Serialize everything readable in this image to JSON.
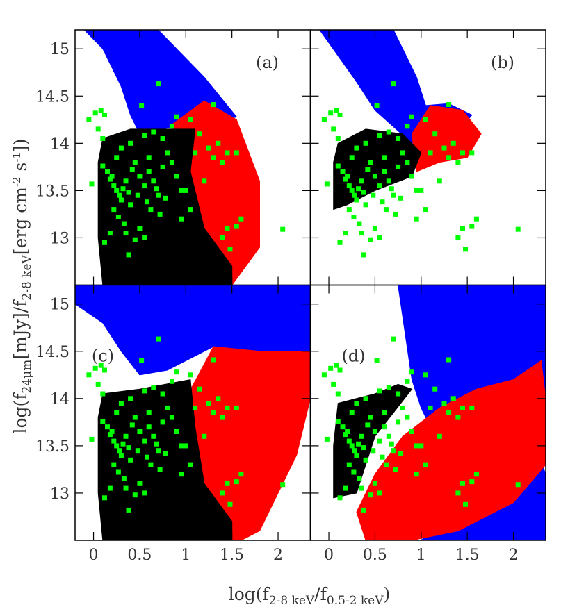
{
  "chart_data": {
    "type": "scatter",
    "layout": "2x2 panels",
    "xlabel_parts": {
      "main": "log(f",
      "sub1": "2-8 keV",
      "mid": "/f",
      "sub2": "0.5-2 keV",
      "end": ")"
    },
    "ylabel_parts": {
      "main": "log(f",
      "sub1": "24μm",
      "mid": "[mJy]/f",
      "sub2": "2-8 keV",
      "bracket": "[erg cm",
      "sup1": "-2",
      "mid2": " s",
      "sup2": "-1",
      "end": "])"
    },
    "xlim": [
      -0.2,
      2.35
    ],
    "ylim": [
      12.5,
      15.2
    ],
    "x_ticks": [
      "0",
      "0.5",
      "1",
      "1.5",
      "2"
    ],
    "x_tick_values": [
      0,
      0.5,
      1,
      1.5,
      2
    ],
    "y_ticks": [
      "13",
      "13.5",
      "14",
      "14.5",
      "15"
    ],
    "y_tick_values": [
      13,
      13.5,
      14,
      14.5,
      15
    ],
    "grid": false,
    "colors": {
      "blue": "#0000ff",
      "red": "#ff0000",
      "black": "#000000",
      "green": "#00ff00"
    },
    "panels": [
      {
        "label": "(a)",
        "regions": [
          {
            "color": "blue",
            "polygon": [
              [
                -0.1,
                15.2
              ],
              [
                0.7,
                15.2
              ],
              [
                1.2,
                14.7
              ],
              [
                1.55,
                14.28
              ],
              [
                1.3,
                14.2
              ],
              [
                0.9,
                14.18
              ],
              [
                0.5,
                14.1
              ],
              [
                0.4,
                14.3
              ],
              [
                0.3,
                14.6
              ],
              [
                0.1,
                15.0
              ]
            ]
          },
          {
            "color": "red",
            "polygon": [
              [
                0.85,
                14.2
              ],
              [
                1.2,
                14.45
              ],
              [
                1.55,
                14.25
              ],
              [
                1.8,
                13.6
              ],
              [
                1.8,
                12.9
              ],
              [
                1.5,
                12.5
              ],
              [
                1.1,
                12.5
              ],
              [
                1.0,
                13.5
              ]
            ]
          },
          {
            "color": "black",
            "polygon": [
              [
                0.05,
                13.8
              ],
              [
                0.1,
                14.05
              ],
              [
                0.4,
                14.15
              ],
              [
                1.1,
                14.15
              ],
              [
                1.05,
                13.7
              ],
              [
                1.2,
                13.1
              ],
              [
                1.5,
                12.7
              ],
              [
                1.5,
                12.5
              ],
              [
                0.1,
                12.5
              ],
              [
                0.05,
                13.0
              ]
            ]
          }
        ]
      },
      {
        "label": "(b)",
        "regions": [
          {
            "color": "blue",
            "polygon": [
              [
                -0.1,
                15.2
              ],
              [
                0.7,
                15.2
              ],
              [
                0.95,
                14.7
              ],
              [
                1.05,
                14.4
              ],
              [
                1.3,
                14.42
              ],
              [
                1.55,
                14.3
              ],
              [
                1.35,
                14.05
              ],
              [
                1.1,
                14.1
              ],
              [
                0.9,
                14.0
              ],
              [
                0.5,
                14.35
              ],
              [
                0.3,
                14.65
              ]
            ]
          },
          {
            "color": "red",
            "polygon": [
              [
                0.9,
                14.1
              ],
              [
                1.1,
                14.4
              ],
              [
                1.45,
                14.35
              ],
              [
                1.65,
                14.1
              ],
              [
                1.5,
                13.85
              ],
              [
                1.2,
                13.8
              ],
              [
                0.95,
                13.7
              ]
            ]
          },
          {
            "color": "black",
            "polygon": [
              [
                0.05,
                13.8
              ],
              [
                0.1,
                14.0
              ],
              [
                0.4,
                14.15
              ],
              [
                0.8,
                14.1
              ],
              [
                1.0,
                13.9
              ],
              [
                0.9,
                13.65
              ],
              [
                0.5,
                13.5
              ],
              [
                0.2,
                13.35
              ],
              [
                0.05,
                13.3
              ]
            ]
          }
        ]
      },
      {
        "label": "(c)",
        "regions": [
          {
            "color": "blue",
            "polygon": [
              [
                -0.2,
                15.0
              ],
              [
                -0.2,
                15.2
              ],
              [
                2.35,
                15.2
              ],
              [
                2.35,
                14.5
              ],
              [
                1.8,
                14.5
              ],
              [
                1.3,
                14.55
              ],
              [
                1.0,
                14.4
              ],
              [
                0.8,
                14.3
              ],
              [
                0.5,
                14.25
              ],
              [
                0.3,
                14.5
              ],
              [
                0.1,
                14.8
              ]
            ]
          },
          {
            "color": "red",
            "polygon": [
              [
                1.0,
                14.0
              ],
              [
                1.3,
                14.55
              ],
              [
                1.8,
                14.5
              ],
              [
                2.35,
                14.5
              ],
              [
                2.35,
                14.0
              ],
              [
                2.2,
                13.4
              ],
              [
                1.8,
                12.6
              ],
              [
                1.6,
                12.5
              ],
              [
                1.1,
                12.5
              ]
            ]
          },
          {
            "color": "black",
            "polygon": [
              [
                0.05,
                13.8
              ],
              [
                0.1,
                14.05
              ],
              [
                0.5,
                14.1
              ],
              [
                1.05,
                14.2
              ],
              [
                1.1,
                13.7
              ],
              [
                1.2,
                13.1
              ],
              [
                1.5,
                12.7
              ],
              [
                1.5,
                12.5
              ],
              [
                0.1,
                12.5
              ],
              [
                0.05,
                13.0
              ]
            ]
          }
        ]
      },
      {
        "label": "(d)",
        "regions": [
          {
            "color": "blue",
            "polygon": [
              [
                0.75,
                15.2
              ],
              [
                2.35,
                15.2
              ],
              [
                2.35,
                14.0
              ],
              [
                2.2,
                13.6
              ],
              [
                2.35,
                13.2
              ],
              [
                2.35,
                12.5
              ],
              [
                1.0,
                12.5
              ],
              [
                1.5,
                12.9
              ],
              [
                1.3,
                13.3
              ],
              [
                1.0,
                13.9
              ],
              [
                0.9,
                14.2
              ]
            ]
          },
          {
            "color": "red",
            "polygon": [
              [
                0.3,
                12.8
              ],
              [
                0.5,
                13.2
              ],
              [
                0.8,
                13.6
              ],
              [
                1.2,
                13.9
              ],
              [
                1.6,
                14.1
              ],
              [
                2.0,
                14.2
              ],
              [
                2.3,
                14.4
              ],
              [
                2.35,
                14.0
              ],
              [
                2.35,
                13.3
              ],
              [
                2.0,
                12.9
              ],
              [
                1.4,
                12.6
              ],
              [
                0.9,
                12.5
              ],
              [
                0.4,
                12.5
              ]
            ]
          },
          {
            "color": "black",
            "polygon": [
              [
                0.05,
                13.5
              ],
              [
                0.1,
                13.95
              ],
              [
                0.5,
                14.05
              ],
              [
                0.75,
                14.15
              ],
              [
                0.9,
                14.1
              ],
              [
                0.5,
                13.6
              ],
              [
                0.3,
                13.0
              ],
              [
                0.05,
                12.95
              ]
            ]
          }
        ]
      }
    ],
    "green_points": [
      [
        -0.05,
        14.25
      ],
      [
        0.02,
        14.32
      ],
      [
        0.08,
        14.35
      ],
      [
        0.12,
        14.3
      ],
      [
        0.05,
        14.15
      ],
      [
        0.1,
        14.05
      ],
      [
        -0.02,
        13.57
      ],
      [
        0.1,
        13.76
      ],
      [
        0.15,
        13.7
      ],
      [
        0.2,
        13.65
      ],
      [
        0.22,
        13.55
      ],
      [
        0.25,
        13.5
      ],
      [
        0.28,
        13.45
      ],
      [
        0.3,
        13.4
      ],
      [
        0.32,
        13.52
      ],
      [
        0.35,
        13.6
      ],
      [
        0.38,
        13.48
      ],
      [
        0.4,
        13.35
      ],
      [
        0.42,
        13.72
      ],
      [
        0.45,
        13.8
      ],
      [
        0.5,
        13.65
      ],
      [
        0.55,
        13.55
      ],
      [
        0.6,
        13.7
      ],
      [
        0.65,
        13.6
      ],
      [
        0.7,
        13.45
      ],
      [
        0.75,
        13.75
      ],
      [
        0.8,
        13.9
      ],
      [
        0.85,
        13.8
      ],
      [
        0.9,
        13.65
      ],
      [
        0.95,
        13.5
      ],
      [
        0.22,
        13.3
      ],
      [
        0.27,
        13.22
      ],
      [
        0.33,
        13.15
      ],
      [
        0.35,
        13.05
      ],
      [
        0.45,
        12.98
      ],
      [
        0.5,
        13.1
      ],
      [
        0.55,
        13.0
      ],
      [
        0.38,
        12.82
      ],
      [
        0.62,
        13.3
      ],
      [
        0.72,
        13.25
      ],
      [
        0.18,
        13.05
      ],
      [
        0.12,
        12.95
      ],
      [
        0.3,
        13.95
      ],
      [
        0.4,
        14.0
      ],
      [
        0.55,
        14.08
      ],
      [
        0.65,
        14.12
      ],
      [
        0.75,
        14.05
      ],
      [
        0.85,
        14.18
      ],
      [
        0.7,
        14.63
      ],
      [
        0.52,
        14.4
      ],
      [
        0.9,
        14.28
      ],
      [
        1.05,
        14.25
      ],
      [
        1.15,
        14.1
      ],
      [
        1.25,
        13.95
      ],
      [
        1.3,
        13.85
      ],
      [
        1.4,
        13.8
      ],
      [
        1.45,
        13.9
      ],
      [
        1.2,
        13.6
      ],
      [
        1.1,
        13.9
      ],
      [
        1.35,
        14.0
      ],
      [
        1.3,
        14.41
      ],
      [
        1.55,
        13.9
      ],
      [
        1.45,
        13.1
      ],
      [
        1.55,
        13.12
      ],
      [
        1.6,
        13.2
      ],
      [
        1.4,
        13.0
      ],
      [
        1.48,
        12.88
      ],
      [
        2.05,
        13.09
      ],
      [
        1.0,
        13.5
      ],
      [
        1.05,
        13.3
      ],
      [
        0.95,
        13.2
      ],
      [
        0.6,
        13.85
      ],
      [
        0.25,
        13.85
      ],
      [
        0.18,
        13.62
      ],
      [
        0.48,
        13.45
      ],
      [
        0.58,
        13.38
      ],
      [
        0.68,
        13.52
      ],
      [
        0.78,
        13.42
      ]
    ]
  }
}
